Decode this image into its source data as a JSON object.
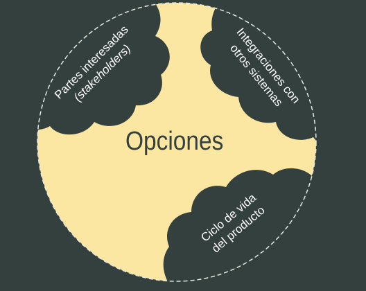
{
  "diagram": {
    "center_label": "Opciones",
    "clouds": [
      {
        "id": "stakeholders",
        "line1": "Partes interesadas",
        "line2": "(stakeholders)"
      },
      {
        "id": "integraciones",
        "line1": "Integraciones con",
        "line2": "otros sistemas"
      },
      {
        "id": "ciclo",
        "line1": "Ciclo de vida",
        "line2": "del producto"
      }
    ]
  },
  "colors": {
    "background": "#34403d",
    "circle_fill": "#fbe6a2",
    "cloud_fill": "#34403d",
    "center_text": "#34403d",
    "cloud_text": "#ffffff",
    "dashed_border": "#e6e9e3"
  }
}
